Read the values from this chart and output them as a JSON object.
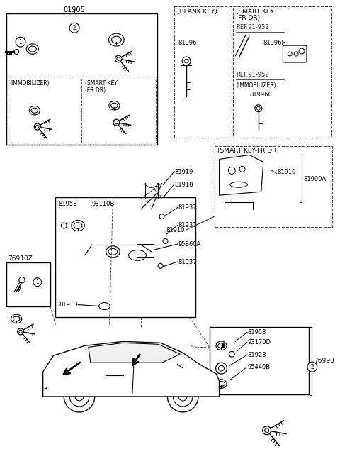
{
  "bg_color": "#ffffff",
  "parts": {
    "81905_label": "81905",
    "blank_key": "(BLANK KEY)",
    "smart_key_fr_dr": "(SMART KEY\n-FR DR)",
    "ref1": "REF.91-952",
    "ref2": "REF.91-952",
    "immobilizer": "(IMMOBILIZER)",
    "smart_key_fr_dr2": "(SMART KEY-FR DR)",
    "81996": "81996",
    "81996H": "81996H",
    "81996C": "81996C",
    "81910a": "81910",
    "81900A": "81900A",
    "81910b": "81910",
    "81919": "81919",
    "81918": "81918",
    "81937a": "81937",
    "81937b": "81937",
    "95860A": "95860A",
    "81937c": "81937",
    "81958a": "81958",
    "93110B": "93110B",
    "81913": "81913",
    "76910Z": "76910Z",
    "81958b": "81958",
    "93170D": "93170D",
    "81928": "81928",
    "95440B": "95440B",
    "76990": "76990",
    "immo_label": "(IMMOBILIZER)",
    "smart_key_label": "(SMART KEY\n-FR DR)"
  }
}
